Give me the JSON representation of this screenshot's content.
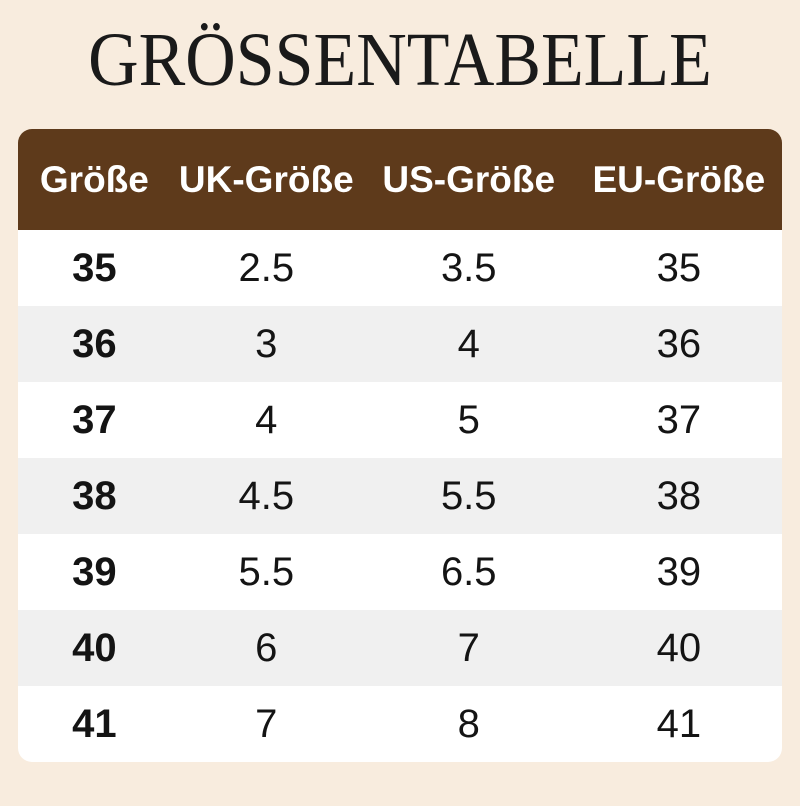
{
  "title": "GRÖSSENTABELLE",
  "colors": {
    "background": "#f8ecde",
    "header_bg": "#5e3a1b",
    "header_text": "#ffffff",
    "row_bg": "#ffffff",
    "row_alt_bg": "#f0f0f0",
    "cell_text": "#141414",
    "title_color": "#1a1a1a"
  },
  "chart_data": {
    "type": "table",
    "title": "GRÖSSENTABELLE",
    "columns": [
      "Größe",
      "UK-Größe",
      "US-Größe",
      "EU-Größe"
    ],
    "rows": [
      [
        "35",
        "2.5",
        "3.5",
        "35"
      ],
      [
        "36",
        "3",
        "4",
        "36"
      ],
      [
        "37",
        "4",
        "5",
        "37"
      ],
      [
        "38",
        "4.5",
        "5.5",
        "38"
      ],
      [
        "39",
        "5.5",
        "6.5",
        "39"
      ],
      [
        "40",
        "6",
        "7",
        "40"
      ],
      [
        "41",
        "7",
        "8",
        "41"
      ]
    ],
    "layout": {
      "grid": false,
      "header_position": "top",
      "alternating_rows": true,
      "column_width_pct": [
        20,
        25,
        28,
        27
      ]
    }
  }
}
